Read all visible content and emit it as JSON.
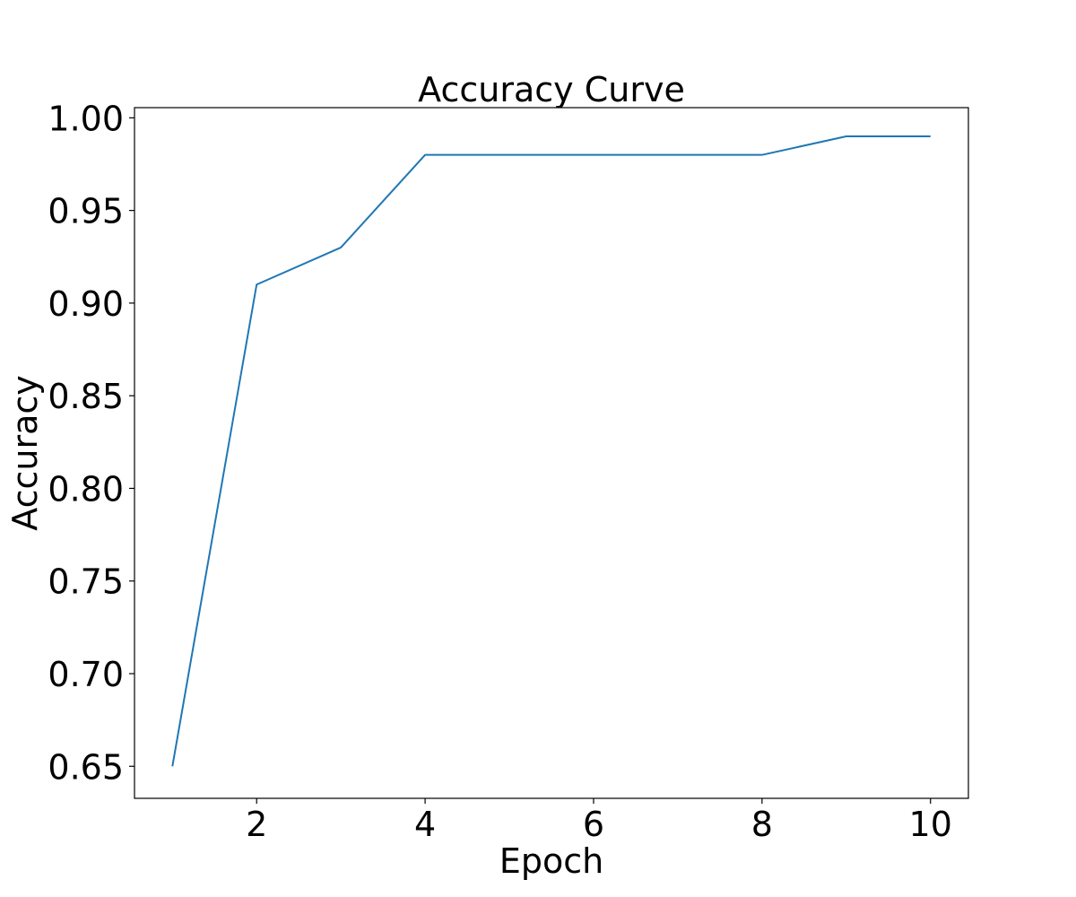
{
  "chart_data": {
    "type": "line",
    "title": "Accuracy Curve",
    "xlabel": "Epoch",
    "ylabel": "Accuracy",
    "xlim": [
      0.55,
      10.45
    ],
    "ylim": [
      0.6327,
      1.0055
    ],
    "xticks": [
      2,
      4,
      6,
      8,
      10
    ],
    "xtick_labels": [
      "2",
      "4",
      "6",
      "8",
      "10"
    ],
    "yticks": [
      0.65,
      0.7,
      0.75,
      0.8,
      0.85,
      0.9,
      0.95,
      1.0
    ],
    "ytick_labels": [
      "0.65",
      "0.70",
      "0.75",
      "0.80",
      "0.85",
      "0.90",
      "0.95",
      "1.00"
    ],
    "grid": false,
    "series": [
      {
        "color": "#1f77b4",
        "x": [
          1,
          2,
          3,
          4,
          5,
          6,
          7,
          8,
          9,
          10
        ],
        "y": [
          0.65,
          0.91,
          0.93,
          0.98,
          0.98,
          0.98,
          0.98,
          0.98,
          0.99,
          0.99
        ]
      }
    ]
  }
}
